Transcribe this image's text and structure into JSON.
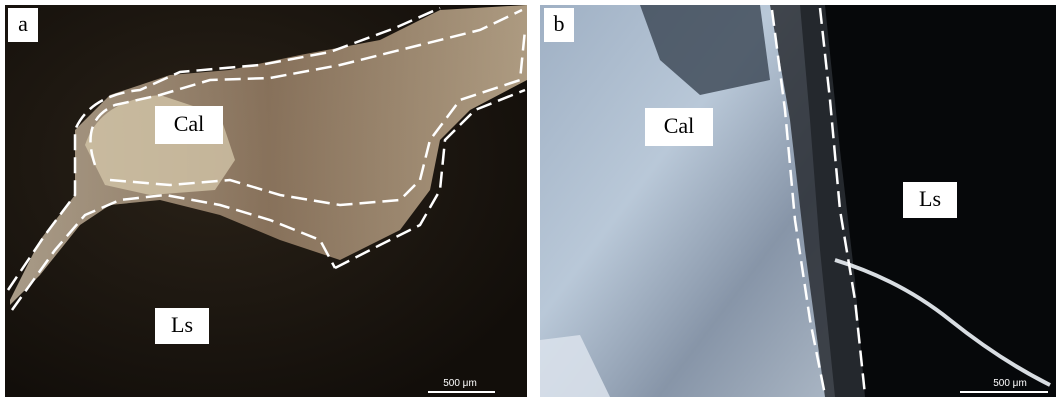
{
  "panels": [
    {
      "label": "a",
      "annotations": [
        "Cal",
        "Ls"
      ],
      "scale_bar": "500 μm"
    },
    {
      "label": "b",
      "annotations": [
        "Cal",
        "Ls"
      ],
      "scale_bar": "500 μm"
    }
  ]
}
